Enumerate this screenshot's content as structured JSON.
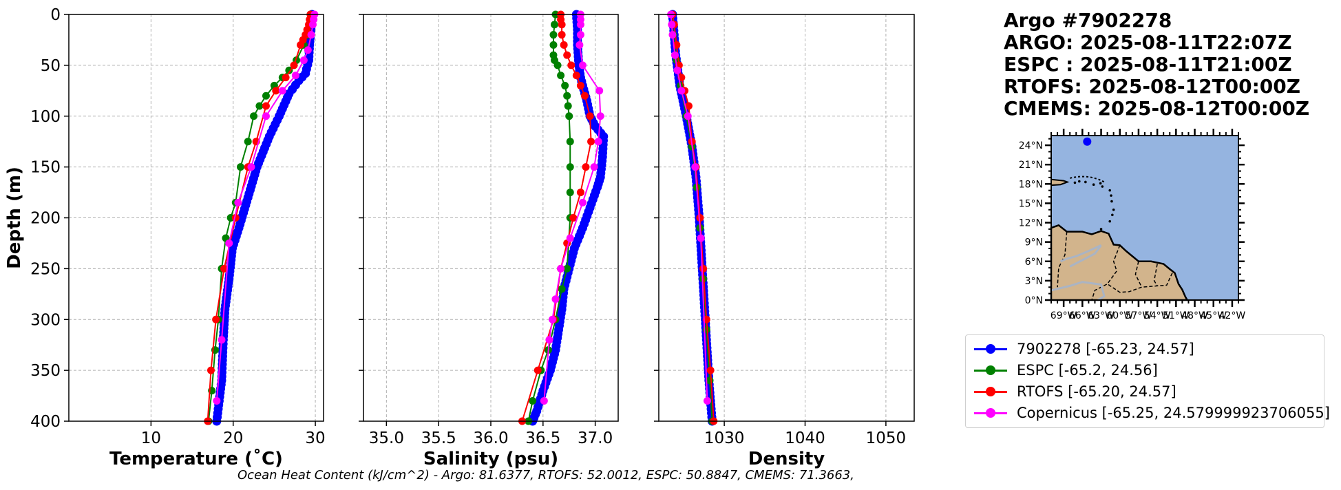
{
  "info": {
    "title": "Argo #7902278",
    "argo": "ARGO: 2025-08-11T22:07Z",
    "espc": "ESPC : 2025-08-11T21:00Z",
    "rtofs": "RTOFS: 2025-08-12T00:00Z",
    "cmems": "CMEMS: 2025-08-12T00:00Z"
  },
  "colors": {
    "argo": "#0000ff",
    "espc": "#008000",
    "rtofs": "#ff0000",
    "copernicus": "#ff00ff",
    "ocean": "#95b4e0",
    "land": "#d2b48c"
  },
  "legend": [
    {
      "label": "7902278 [-65.23, 24.57]",
      "color": "#0000ff"
    },
    {
      "label": "ESPC [-65.2, 24.56]",
      "color": "#008000"
    },
    {
      "label": "RTOFS [-65.20, 24.57]",
      "color": "#ff0000"
    },
    {
      "label": "Copernicus [-65.25, 24.579999923706055]",
      "color": "#ff00ff"
    }
  ],
  "footer": {
    "ohc_text": "Ocean Heat Content (kJ/cm^2) - Argo: 81.6377,  RTOFS: 52.0012,  ESPC: 50.8847,  CMEMS: 71.3663,"
  },
  "chart_data": [
    {
      "type": "line",
      "id": "temperature",
      "xlabel": "Temperature (˚C)",
      "ylabel": "Depth (m)",
      "xlim": [
        0,
        31
      ],
      "ylim": [
        400,
        0
      ],
      "xticks": [
        10,
        20,
        30
      ],
      "yticks": [
        0,
        50,
        100,
        150,
        200,
        250,
        300,
        350,
        400
      ],
      "grid": true,
      "series": [
        {
          "name": "Argo 7902278",
          "color": "#0000ff",
          "dense": true,
          "x": [
            29.6,
            29.5,
            29.4,
            29.3,
            29.2,
            28.8,
            28.0,
            26.8,
            25.6,
            24.4,
            22.9,
            21.8,
            20.7,
            19.9,
            19.5,
            19.0,
            18.8,
            18.7,
            18.6,
            18.3,
            18.0
          ],
          "y": [
            0,
            10,
            20,
            30,
            45,
            58,
            65,
            78,
            100,
            120,
            150,
            180,
            210,
            230,
            260,
            290,
            320,
            340,
            360,
            380,
            400
          ]
        },
        {
          "name": "ESPC",
          "color": "#008000",
          "x": [
            29.4,
            29.3,
            29.1,
            28.6,
            27.7,
            26.8,
            26.0,
            25.0,
            24.0,
            23.2,
            22.5,
            21.8,
            20.9,
            20.3,
            19.7,
            19.1,
            18.6,
            18.2,
            17.8,
            17.4,
            17.0
          ],
          "y": [
            0,
            10,
            20,
            30,
            45,
            55,
            62,
            70,
            80,
            90,
            100,
            125,
            150,
            185,
            200,
            220,
            250,
            300,
            330,
            370,
            400
          ]
        },
        {
          "name": "RTOFS",
          "color": "#ff0000",
          "x": [
            29.4,
            29.3,
            29.2,
            29.0,
            28.8,
            28.5,
            28.2,
            27.4,
            26.4,
            25.2,
            24.0,
            22.8,
            21.8,
            20.3,
            18.9,
            17.9,
            17.3,
            16.9
          ],
          "y": [
            0,
            5,
            10,
            15,
            20,
            25,
            30,
            50,
            62,
            75,
            90,
            125,
            150,
            200,
            250,
            300,
            350,
            400
          ]
        },
        {
          "name": "Copernicus",
          "color": "#ff00ff",
          "x": [
            29.9,
            29.8,
            29.7,
            29.5,
            29.1,
            28.6,
            27.6,
            26.0,
            24.0,
            22.2,
            20.6,
            19.5,
            18.6,
            18.0
          ],
          "y": [
            0,
            5,
            10,
            20,
            35,
            45,
            60,
            75,
            100,
            150,
            185,
            225,
            320,
            380
          ]
        }
      ]
    },
    {
      "type": "line",
      "id": "salinity",
      "xlabel": "Salinity (psu)",
      "xlim": [
        34.78,
        37.22
      ],
      "ylim": [
        400,
        0
      ],
      "xticks": [
        35.0,
        35.5,
        36.0,
        36.5,
        37.0
      ],
      "xticklabels": [
        "35.0",
        "35.5",
        "36.0",
        "36.5",
        "37.0"
      ],
      "grid": true,
      "series": [
        {
          "name": "Argo 7902278",
          "color": "#0000ff",
          "dense": true,
          "x": [
            36.82,
            36.83,
            36.83,
            36.84,
            36.85,
            36.86,
            36.88,
            36.92,
            36.95,
            37.0,
            37.08,
            37.07,
            37.05,
            37.02,
            36.95,
            36.88,
            36.8,
            36.75,
            36.7,
            36.68,
            36.65,
            36.62,
            36.57,
            36.5,
            36.44,
            36.4
          ],
          "y": [
            0,
            15,
            30,
            45,
            55,
            62,
            70,
            85,
            100,
            110,
            120,
            140,
            160,
            170,
            190,
            210,
            230,
            250,
            270,
            290,
            310,
            330,
            350,
            370,
            390,
            400
          ]
        },
        {
          "name": "ESPC",
          "color": "#008000",
          "x": [
            36.62,
            36.61,
            36.6,
            36.6,
            36.6,
            36.61,
            36.64,
            36.67,
            36.71,
            36.73,
            36.74,
            36.75,
            36.76,
            36.76,
            36.76,
            36.76,
            36.73,
            36.68,
            36.62,
            36.55,
            36.48,
            36.4,
            36.36
          ],
          "y": [
            0,
            10,
            20,
            30,
            40,
            45,
            50,
            60,
            70,
            80,
            90,
            100,
            125,
            150,
            175,
            200,
            250,
            270,
            300,
            330,
            350,
            380,
            400
          ]
        },
        {
          "name": "RTOFS",
          "color": "#ff0000",
          "x": [
            36.67,
            36.67,
            36.68,
            36.68,
            36.7,
            36.73,
            36.77,
            36.82,
            36.86,
            36.9,
            36.95,
            36.96,
            36.91,
            36.86,
            36.79,
            36.73,
            36.67,
            36.6,
            36.45,
            36.3
          ],
          "y": [
            0,
            5,
            10,
            20,
            30,
            40,
            50,
            60,
            70,
            80,
            100,
            125,
            150,
            175,
            200,
            225,
            250,
            300,
            350,
            400
          ]
        },
        {
          "name": "Copernicus",
          "color": "#ff00ff",
          "x": [
            36.86,
            36.86,
            36.86,
            36.86,
            36.85,
            36.88,
            37.04,
            37.05,
            37.03,
            36.99,
            36.88,
            36.76,
            36.67,
            36.62,
            36.59,
            36.56,
            36.51
          ],
          "y": [
            0,
            5,
            10,
            20,
            30,
            50,
            75,
            100,
            125,
            150,
            185,
            220,
            250,
            280,
            300,
            320,
            380
          ]
        }
      ]
    },
    {
      "type": "line",
      "id": "density",
      "xlabel": "Density",
      "xlim": [
        1021.9,
        1053.5
      ],
      "ylim": [
        400,
        0
      ],
      "xticks": [
        1030,
        1040,
        1050
      ],
      "grid": true,
      "series": [
        {
          "name": "Argo 7902278",
          "color": "#0000ff",
          "dense": true,
          "x": [
            1023.6,
            1023.8,
            1024.0,
            1024.5,
            1025.3,
            1026.0,
            1026.5,
            1026.9,
            1027.2,
            1027.5,
            1027.8,
            1028.1,
            1028.5
          ],
          "y": [
            0,
            20,
            40,
            70,
            100,
            130,
            160,
            200,
            240,
            280,
            320,
            360,
            400
          ]
        },
        {
          "name": "ESPC",
          "color": "#008000",
          "x": [
            1023.5,
            1023.7,
            1024.1,
            1024.6,
            1025.3,
            1026.0,
            1026.6,
            1027.0,
            1027.4,
            1027.8,
            1028.2,
            1028.5
          ],
          "y": [
            0,
            20,
            45,
            70,
            100,
            130,
            170,
            210,
            260,
            310,
            360,
            400
          ]
        },
        {
          "name": "RTOFS",
          "color": "#ff0000",
          "x": [
            1023.6,
            1023.8,
            1024.1,
            1024.4,
            1024.7,
            1025.1,
            1025.6,
            1026.0,
            1026.5,
            1027.0,
            1027.4,
            1027.8,
            1028.3,
            1028.7
          ],
          "y": [
            0,
            10,
            30,
            50,
            62,
            75,
            90,
            125,
            150,
            200,
            250,
            300,
            350,
            400
          ]
        },
        {
          "name": "Copernicus",
          "color": "#ff00ff",
          "x": [
            1023.4,
            1023.5,
            1023.6,
            1023.9,
            1024.2,
            1024.7,
            1025.5,
            1026.4,
            1027.1,
            1027.9
          ],
          "y": [
            0,
            10,
            20,
            40,
            55,
            75,
            100,
            150,
            220,
            380
          ]
        }
      ]
    },
    {
      "type": "map",
      "id": "locator_map",
      "lon_range": [
        -71,
        -41
      ],
      "lat_range": [
        0,
        25.5
      ],
      "lon_ticklabels": [
        "69°W",
        "66°W",
        "63°W",
        "60°W",
        "57°W",
        "54°W",
        "51°W",
        "48°W",
        "45°W",
        "42°W"
      ],
      "lon_tick_values": [
        -69,
        -66,
        -63,
        -60,
        -57,
        -54,
        -51,
        -48,
        -45,
        -42
      ],
      "lat_ticklabels": [
        "24°N",
        "21°N",
        "18°N",
        "15°N",
        "12°N",
        "9°N",
        "6°N",
        "3°N",
        "0°N"
      ],
      "lat_tick_values": [
        24,
        21,
        18,
        15,
        12,
        9,
        6,
        3,
        0
      ],
      "float_position": {
        "lon": -65.23,
        "lat": 24.57,
        "color": "#0000ff"
      }
    }
  ]
}
